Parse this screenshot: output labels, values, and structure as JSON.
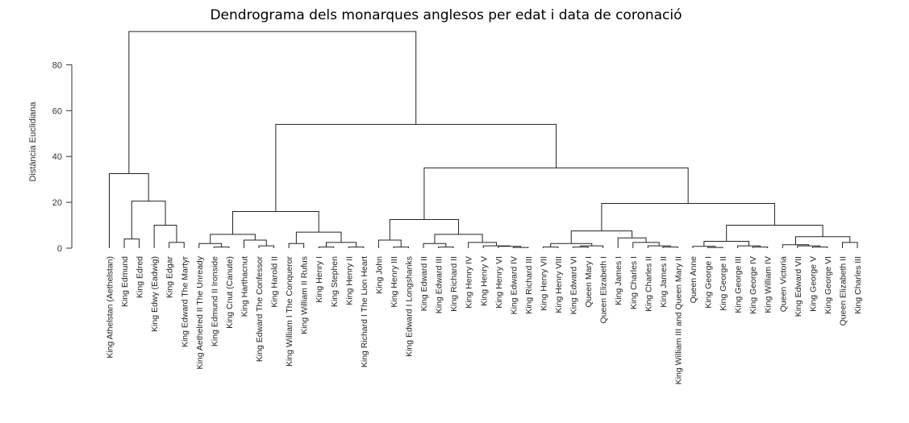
{
  "chart_data": {
    "type": "dendrogram",
    "title": "Dendrograma dels monarques anglesos per edat i data de coronació",
    "ylabel": "Distància Euclidiana",
    "ylim": [
      0,
      95
    ],
    "yticks": [
      0,
      20,
      40,
      60,
      80
    ],
    "leaves": [
      "King Athelstan (Aethelstan)",
      "King Edmund",
      "King Edred",
      "King Edwy (Eadwig)",
      "King Edgar",
      "King Edward The Martyr",
      "King Aethelred II The Unready",
      "King Edmund II Ironside",
      "King Cnut (Canute)",
      "King Harthacnut",
      "King Edward The Confessor",
      "King Harold II",
      "King William I The Conqueror",
      "King William II Rufus",
      "King Henry I",
      "King Stephen",
      "King Henry II",
      "King Richard I The Lion Heart",
      "King John",
      "King Henry III",
      "King Edward I Longshanks",
      "King Edward II",
      "King Edward III",
      "King Richard II",
      "King Henry IV",
      "King Henry V",
      "King Henry VI",
      "King Edward IV",
      "King Richard III",
      "King Henry VII",
      "King Henry VIII",
      "King Edward VI",
      "Queen Mary I",
      "Queen Elizabeth I",
      "King James I",
      "King Charles I",
      "King Charles II",
      "King James II",
      "King William III and Queen Mary II",
      "Queen Anne",
      "King George I",
      "King George II",
      "King George III",
      "King George IV",
      "King William IV",
      "Queen Victoria",
      "King Edward VII",
      "King George V",
      "King George VI",
      "Queen Elizabeth II",
      "King Charles III"
    ],
    "merges": [
      {
        "children": [
          1,
          2
        ],
        "height": 4
      },
      {
        "children": [
          4,
          5
        ],
        "height": 2.5
      },
      {
        "children": [
          3,
          "m1"
        ],
        "height": 10
      },
      {
        "children": [
          "m0",
          "m2"
        ],
        "height": 20.5
      },
      {
        "children": [
          0,
          "m3"
        ],
        "height": 32.5
      },
      {
        "children": [
          7,
          8
        ],
        "height": 0.5
      },
      {
        "children": [
          6,
          "m5"
        ],
        "height": 2
      },
      {
        "children": [
          10,
          11
        ],
        "height": 1
      },
      {
        "children": [
          9,
          "m7"
        ],
        "height": 3.5
      },
      {
        "children": [
          "m6",
          "m8"
        ],
        "height": 6
      },
      {
        "children": [
          12,
          13
        ],
        "height": 2
      },
      {
        "children": [
          14,
          15
        ],
        "height": 0.5
      },
      {
        "children": [
          16,
          17
        ],
        "height": 0.5
      },
      {
        "children": [
          "m11",
          "m12"
        ],
        "height": 2.5
      },
      {
        "children": [
          "m10",
          "m13"
        ],
        "height": 7
      },
      {
        "children": [
          "m9",
          "m14"
        ],
        "height": 16
      },
      {
        "children": [
          19,
          20
        ],
        "height": 0.5
      },
      {
        "children": [
          18,
          "m16"
        ],
        "height": 3.5
      },
      {
        "children": [
          22,
          23
        ],
        "height": 0.5
      },
      {
        "children": [
          21,
          "m18"
        ],
        "height": 2
      },
      {
        "children": [
          27,
          28
        ],
        "height": 0.3
      },
      {
        "children": [
          26,
          "m20"
        ],
        "height": 0.8
      },
      {
        "children": [
          25,
          "m21"
        ],
        "height": 1
      },
      {
        "children": [
          24,
          "m22"
        ],
        "height": 2.5
      },
      {
        "children": [
          "m19",
          "m23"
        ],
        "height": 6
      },
      {
        "children": [
          "m17",
          "m24"
        ],
        "height": 12.5
      },
      {
        "children": [
          29,
          30
        ],
        "height": 0.5
      },
      {
        "children": [
          31,
          32
        ],
        "height": 0.5
      },
      {
        "children": [
          "m27",
          33
        ],
        "height": 1
      },
      {
        "children": [
          "m26",
          "m28"
        ],
        "height": 2
      },
      {
        "children": [
          37,
          38
        ],
        "height": 0.5
      },
      {
        "children": [
          36,
          "m30"
        ],
        "height": 1
      },
      {
        "children": [
          35,
          "m31"
        ],
        "height": 2.5
      },
      {
        "children": [
          34,
          "m32"
        ],
        "height": 4.5
      },
      {
        "children": [
          "m29",
          "m33"
        ],
        "height": 7.5
      },
      {
        "children": [
          40,
          41
        ],
        "height": 0.3
      },
      {
        "children": [
          39,
          "m35"
        ],
        "height": 0.8
      },
      {
        "children": [
          43,
          44
        ],
        "height": 0.5
      },
      {
        "children": [
          42,
          "m37"
        ],
        "height": 1
      },
      {
        "children": [
          "m36",
          "m38"
        ],
        "height": 3
      },
      {
        "children": [
          47,
          48
        ],
        "height": 0.5
      },
      {
        "children": [
          46,
          "m40"
        ],
        "height": 1
      },
      {
        "children": [
          45,
          "m41"
        ],
        "height": 1.5
      },
      {
        "children": [
          49,
          50
        ],
        "height": 2.5
      },
      {
        "children": [
          "m42",
          "m43"
        ],
        "height": 5
      },
      {
        "children": [
          "m39",
          "m44"
        ],
        "height": 10
      },
      {
        "children": [
          "m34",
          "m45"
        ],
        "height": 19.5
      },
      {
        "children": [
          "m25",
          "m46"
        ],
        "height": 35
      },
      {
        "children": [
          "m15",
          "m47"
        ],
        "height": 54
      },
      {
        "children": [
          "m4",
          "m48"
        ],
        "height": 94.5
      }
    ]
  }
}
